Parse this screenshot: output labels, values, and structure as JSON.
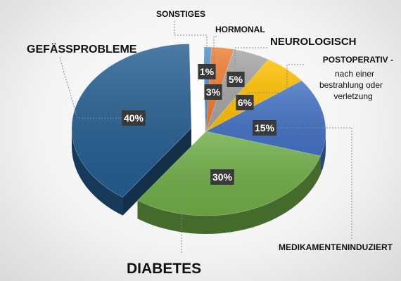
{
  "chart_data": {
    "type": "pie",
    "style": "3d-exploded",
    "title": "",
    "slices": [
      {
        "label": "SONSTIGES",
        "value": 1,
        "value_label": "1%",
        "color": "#4f8fce"
      },
      {
        "label": "HORMONAL",
        "value": 3,
        "value_label": "3%",
        "color": "#ee7d31"
      },
      {
        "label": "NEUROLOGISCH",
        "value": 5,
        "value_label": "5%",
        "color": "#a5a5a5"
      },
      {
        "label": "POSTOPERATIV -",
        "sublabel": [
          "nach einer",
          "bestrahlung oder",
          "verletzung"
        ],
        "value": 6,
        "value_label": "6%",
        "color": "#ffc000"
      },
      {
        "label": "MEDIKAMENTENINDUZIERT",
        "value": 15,
        "value_label": "15%",
        "color": "#4472c4"
      },
      {
        "label": "DIABETES",
        "value": 30,
        "value_label": "30%",
        "color": "#70ad47"
      },
      {
        "label": "GEFÄSSPROBLEME",
        "value": 40,
        "value_label": "40%",
        "color": "#255e91"
      }
    ]
  }
}
